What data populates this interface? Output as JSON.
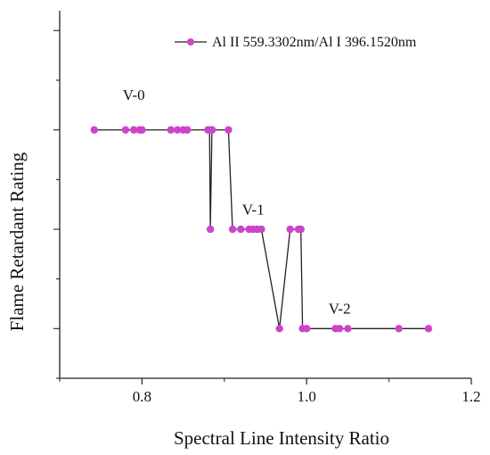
{
  "chart_data": {
    "type": "line",
    "xlabel": "Spectral Line Intensity Ratio",
    "ylabel": "Flame Retardant Rating",
    "xlim": [
      0.7,
      1.2
    ],
    "ylim": [
      0.5,
      4.2
    ],
    "x_ticks": [
      0.8,
      1.0,
      1.2
    ],
    "x_tick_labels": [
      "0.8",
      "1.0",
      "1.2"
    ],
    "y_ticks": [
      0.5,
      1,
      1.5,
      2,
      2.5,
      3,
      3.5,
      4
    ],
    "y_tick_labels": [],
    "grid": false,
    "legend_position": "top-right",
    "annotations": [
      {
        "text": "V-0",
        "x": 0.79,
        "y": 3.3
      },
      {
        "text": "V-1",
        "x": 0.935,
        "y": 2.15
      },
      {
        "text": "V-2",
        "x": 1.04,
        "y": 1.15
      }
    ],
    "series": [
      {
        "name": "Al II 559.3302nm/Al I 396.1520nm",
        "color": "#cc44cc",
        "x": [
          0.742,
          0.78,
          0.79,
          0.797,
          0.8,
          0.835,
          0.843,
          0.85,
          0.855,
          0.88,
          0.882,
          0.883,
          0.885,
          0.885,
          0.905,
          0.91,
          0.92,
          0.93,
          0.935,
          0.94,
          0.945,
          0.967,
          0.98,
          0.99,
          0.993,
          0.995,
          1.0,
          1.035,
          1.04,
          1.05,
          1.112,
          1.148
        ],
        "y": [
          3,
          3,
          3,
          3,
          3,
          3,
          3,
          3,
          3,
          3,
          3,
          2,
          3,
          3,
          3,
          2,
          2,
          2,
          2,
          2,
          2,
          1,
          2,
          2,
          2,
          1,
          1,
          1,
          1,
          1,
          1,
          1
        ]
      }
    ]
  }
}
